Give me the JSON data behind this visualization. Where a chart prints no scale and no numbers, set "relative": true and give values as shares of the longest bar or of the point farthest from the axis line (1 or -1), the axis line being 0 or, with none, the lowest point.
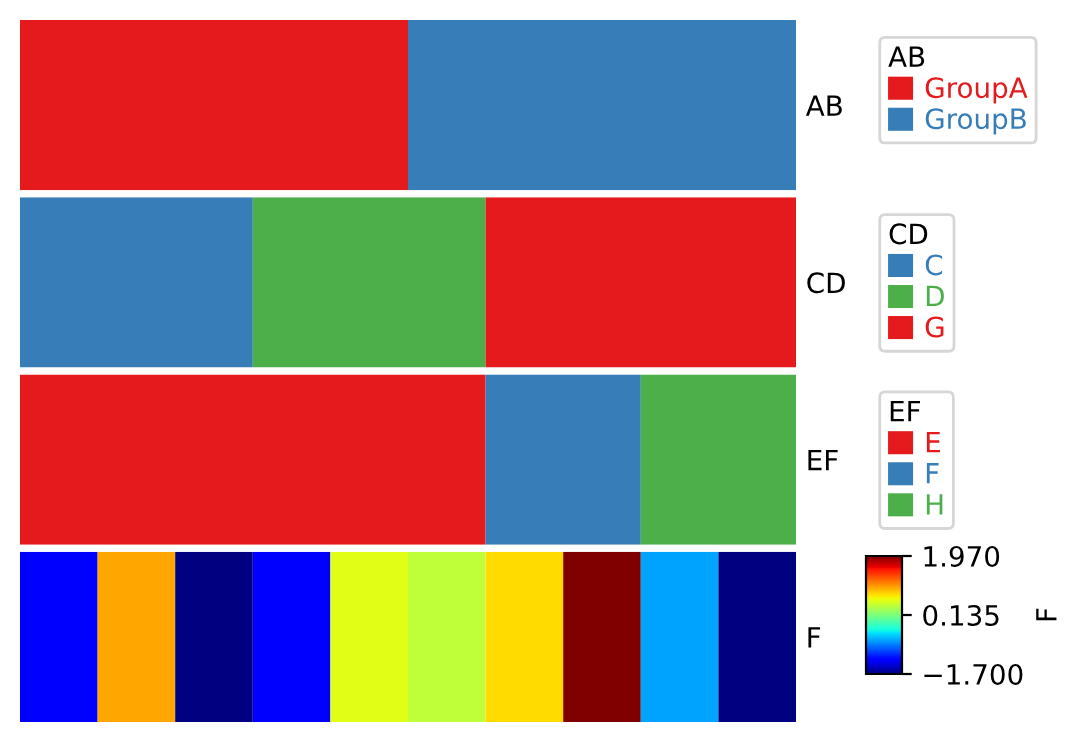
{
  "chart_data": [
    {
      "type": "bar",
      "orientation": "horizontal",
      "stacked": true,
      "relative": true,
      "categories": [
        "AB"
      ],
      "legend_title": "AB",
      "legend": "right",
      "series": [
        {
          "name": "GroupA",
          "color": "#e41a1c",
          "values": [
            0.5
          ]
        },
        {
          "name": "GroupB",
          "color": "#377eb8",
          "values": [
            0.5
          ]
        }
      ]
    },
    {
      "type": "bar",
      "orientation": "horizontal",
      "stacked": true,
      "relative": true,
      "categories": [
        "CD"
      ],
      "legend_title": "CD",
      "legend": "right",
      "series": [
        {
          "name": "C",
          "color": "#377eb8",
          "values": [
            0.3
          ]
        },
        {
          "name": "D",
          "color": "#4daf4a",
          "values": [
            0.3
          ]
        },
        {
          "name": "G",
          "color": "#e41a1c",
          "values": [
            0.4
          ]
        }
      ]
    },
    {
      "type": "bar",
      "orientation": "horizontal",
      "stacked": true,
      "relative": true,
      "categories": [
        "EF"
      ],
      "legend_title": "EF",
      "legend": "right",
      "series": [
        {
          "name": "E",
          "color": "#e41a1c",
          "values": [
            0.6
          ]
        },
        {
          "name": "F",
          "color": "#377eb8",
          "values": [
            0.2
          ]
        },
        {
          "name": "H",
          "color": "#4daf4a",
          "values": [
            0.2
          ]
        }
      ]
    },
    {
      "type": "heatmap",
      "categories": [
        null,
        null,
        null,
        null,
        null,
        null,
        null,
        null,
        null,
        null
      ],
      "y_categories": [
        "F"
      ],
      "clabel": "F",
      "clim": [
        -1.7,
        1.97
      ],
      "cticks": [
        {
          "value": 1.97,
          "label": "1.970"
        },
        {
          "value": 0.135,
          "label": "0.135"
        },
        {
          "value": -1.7,
          "label": "−1.700"
        }
      ],
      "cells": [
        [
          -1.26,
          0.99,
          -1.7,
          -1.26,
          0.58,
          0.43,
          0.79,
          1.97,
          -0.64,
          -1.7
        ]
      ]
    }
  ]
}
